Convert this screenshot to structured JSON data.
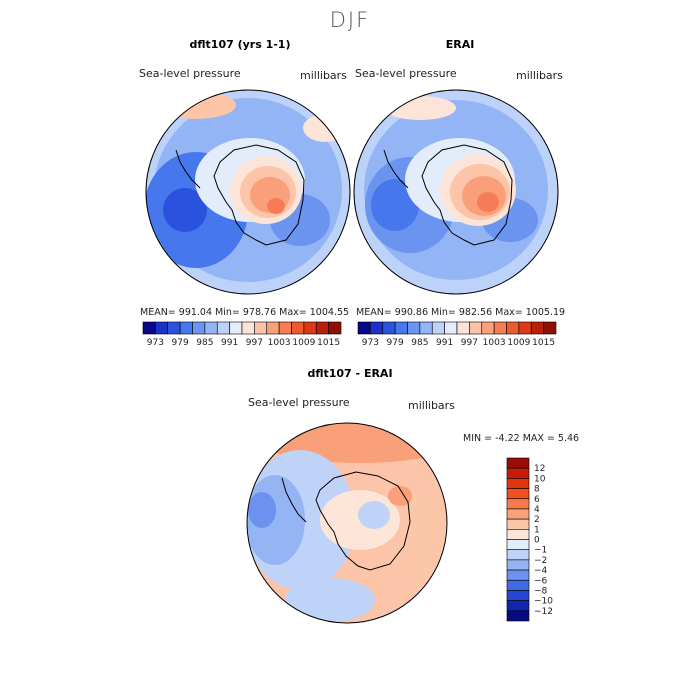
{
  "page": {
    "season_title": "DJF"
  },
  "panel_left": {
    "title": "dflt107 (yrs 1-1)",
    "variable": "Sea-level pressure",
    "units": "millibars",
    "stats": "MEAN= 991.04   Min= 978.76   Max= 1004.55"
  },
  "panel_right": {
    "title": "ERAI",
    "variable": "Sea-level pressure",
    "units": "millibars",
    "stats": "MEAN= 990.86   Min= 982.56   Max= 1005.19"
  },
  "panel_diff": {
    "title": "dflt107 - ERAI",
    "variable": "Sea-level pressure",
    "units": "millibars",
    "stats": "MIN =   -4.22  MAX =    5.46"
  },
  "chart_data": [
    {
      "type": "heatmap",
      "projection": "south-polar-stereographic",
      "title": "dflt107 (yrs 1-1)",
      "variable": "Sea-level pressure",
      "units": "millibars",
      "mean": 991.04,
      "min": 978.76,
      "max": 1004.55,
      "colorbar": {
        "orientation": "horizontal",
        "tick_labels": [
          "973",
          "979",
          "985",
          "991",
          "997",
          "1003",
          "1009",
          "1015"
        ],
        "colors": [
          "#07078a",
          "#1a32c8",
          "#2a52de",
          "#4677ec",
          "#6b94f0",
          "#93b5f5",
          "#bcd2f8",
          "#e3ecfb",
          "#fde4d8",
          "#fcc4a8",
          "#f9a07a",
          "#f57c54",
          "#ee5a30",
          "#dc3a14",
          "#b8200a",
          "#8e1004"
        ]
      }
    },
    {
      "type": "heatmap",
      "projection": "south-polar-stereographic",
      "title": "ERAI",
      "variable": "Sea-level pressure",
      "units": "millibars",
      "mean": 990.86,
      "min": 982.56,
      "max": 1005.19,
      "colorbar": {
        "orientation": "horizontal",
        "tick_labels": [
          "973",
          "979",
          "985",
          "991",
          "997",
          "1003",
          "1009",
          "1015"
        ],
        "colors": [
          "#07078a",
          "#1a32c8",
          "#2a52de",
          "#4677ec",
          "#6b94f0",
          "#93b5f5",
          "#bcd2f8",
          "#e3ecfb",
          "#fde4d8",
          "#fcc4a8",
          "#f9a07a",
          "#f57c54",
          "#ee5a30",
          "#dc3a14",
          "#b8200a",
          "#8e1004"
        ]
      }
    },
    {
      "type": "heatmap",
      "projection": "south-polar-stereographic",
      "title": "dflt107 - ERAI",
      "variable": "Sea-level pressure",
      "units": "millibars",
      "min": -4.22,
      "max": 5.46,
      "colorbar": {
        "orientation": "vertical",
        "tick_labels": [
          "12",
          "10",
          "8",
          "6",
          "4",
          "2",
          "1",
          "0",
          "−1",
          "−2",
          "−4",
          "−6",
          "−8",
          "−10",
          "−12"
        ],
        "colors": [
          "#9a0c06",
          "#c81c0a",
          "#e2340e",
          "#f0501e",
          "#f67a4c",
          "#f9a27a",
          "#fcc7a9",
          "#fde6d8",
          "#e3ecfb",
          "#bfd2f7",
          "#94b4f3",
          "#6b92ee",
          "#3f6ae6",
          "#2446d2",
          "#1126ae",
          "#080a80"
        ]
      }
    }
  ]
}
